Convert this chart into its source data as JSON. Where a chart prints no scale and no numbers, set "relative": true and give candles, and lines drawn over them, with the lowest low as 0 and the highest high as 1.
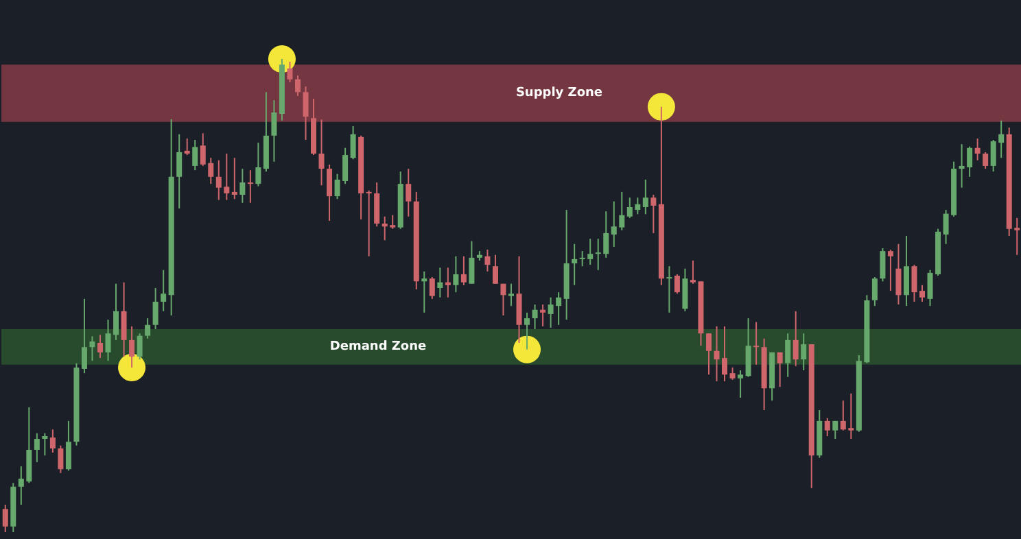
{
  "chart_data": {
    "type": "candlestick",
    "relative": true,
    "tick_labels": false,
    "categories": [
      null,
      null,
      null,
      null,
      null,
      null,
      null,
      null,
      null,
      null,
      null,
      null,
      null,
      null,
      null,
      null,
      null,
      null,
      null,
      null,
      null,
      null,
      null,
      null,
      null,
      null,
      null,
      null,
      null,
      null,
      null,
      null,
      null,
      null,
      null,
      null,
      null,
      null,
      null,
      null,
      null,
      null,
      null,
      null,
      null,
      null,
      null,
      null,
      null,
      null,
      null,
      null,
      null,
      null,
      null,
      null,
      null,
      null,
      null,
      null,
      null,
      null,
      null,
      null,
      null,
      null,
      null,
      null,
      null,
      null,
      null,
      null,
      null,
      null,
      null,
      null,
      null,
      null,
      null,
      null,
      null,
      null,
      null,
      null,
      null,
      null,
      null,
      null,
      null,
      null,
      null,
      null,
      null,
      null,
      null,
      null,
      null,
      null,
      null,
      null,
      null,
      null,
      null,
      null,
      null,
      null,
      null,
      null,
      null,
      null,
      null,
      null,
      null,
      null,
      null,
      null,
      null,
      null,
      null,
      null,
      null,
      null,
      null,
      null,
      null,
      null,
      null,
      null,
      null
    ],
    "ohlc": [
      [
        0.049,
        0.058,
        0,
        0.012
      ],
      [
        0.012,
        0.104,
        0,
        0.096
      ],
      [
        0.096,
        0.139,
        0.058,
        0.113
      ],
      [
        0.107,
        0.264,
        0.104,
        0.174
      ],
      [
        0.174,
        0.209,
        0.148,
        0.197
      ],
      [
        0.197,
        0.209,
        0.162,
        0.203
      ],
      [
        0.2,
        0.217,
        0.168,
        0.177
      ],
      [
        0.177,
        0.183,
        0.125,
        0.133
      ],
      [
        0.133,
        0.235,
        0.13,
        0.191
      ],
      [
        0.191,
        0.357,
        0.183,
        0.348
      ],
      [
        0.345,
        0.493,
        0.336,
        0.391
      ],
      [
        0.391,
        0.414,
        0.362,
        0.403
      ],
      [
        0.4,
        0.417,
        0.368,
        0.38
      ],
      [
        0.38,
        0.449,
        0.362,
        0.42
      ],
      [
        0.417,
        0.525,
        0.406,
        0.467
      ],
      [
        0.467,
        0.528,
        0.371,
        0.406
      ],
      [
        0.406,
        0.435,
        0.348,
        0.371
      ],
      [
        0.371,
        0.42,
        0.365,
        0.415
      ],
      [
        0.415,
        0.452,
        0.409,
        0.438
      ],
      [
        0.438,
        0.516,
        0.429,
        0.487
      ],
      [
        0.487,
        0.554,
        0.467,
        0.504
      ],
      [
        0.501,
        0.873,
        0.458,
        0.751
      ],
      [
        0.751,
        0.841,
        0.684,
        0.803
      ],
      [
        0.806,
        0.832,
        0.797,
        0.8
      ],
      [
        0.774,
        0.829,
        0.765,
        0.814
      ],
      [
        0.817,
        0.843,
        0.774,
        0.777
      ],
      [
        0.78,
        0.791,
        0.736,
        0.751
      ],
      [
        0.751,
        0.786,
        0.702,
        0.728
      ],
      [
        0.73,
        0.8,
        0.702,
        0.716
      ],
      [
        0.719,
        0.791,
        0.704,
        0.713
      ],
      [
        0.713,
        0.768,
        0.696,
        0.739
      ],
      [
        0.739,
        0.765,
        0.696,
        0.736
      ],
      [
        0.736,
        0.823,
        0.731,
        0.771
      ],
      [
        0.768,
        0.93,
        0.762,
        0.838
      ],
      [
        0.838,
        0.913,
        0.783,
        0.887
      ],
      [
        0.884,
        1,
        0.87,
        0.988
      ],
      [
        0.98,
        0.994,
        0.951,
        0.957
      ],
      [
        0.957,
        0.965,
        0.922,
        0.93
      ],
      [
        0.93,
        0.942,
        0.829,
        0.878
      ],
      [
        0.875,
        0.916,
        0.797,
        0.8
      ],
      [
        0.8,
        0.872,
        0.733,
        0.768
      ],
      [
        0.768,
        0.777,
        0.658,
        0.71
      ],
      [
        0.71,
        0.757,
        0.704,
        0.745
      ],
      [
        0.742,
        0.812,
        0.736,
        0.797
      ],
      [
        0.791,
        0.858,
        0.788,
        0.841
      ],
      [
        0.835,
        0.838,
        0.661,
        0.716
      ],
      [
        0.719,
        0.722,
        0.583,
        0.716
      ],
      [
        0.716,
        0.739,
        0.646,
        0.652
      ],
      [
        0.652,
        0.667,
        0.617,
        0.646
      ],
      [
        0.649,
        0.67,
        0.641,
        0.644
      ],
      [
        0.644,
        0.762,
        0.641,
        0.736
      ],
      [
        0.736,
        0.768,
        0.667,
        0.699
      ],
      [
        0.699,
        0.719,
        0.513,
        0.53
      ],
      [
        0.53,
        0.551,
        0.464,
        0.536
      ],
      [
        0.536,
        0.539,
        0.493,
        0.499
      ],
      [
        0.516,
        0.559,
        0.496,
        0.528
      ],
      [
        0.528,
        0.559,
        0.496,
        0.522
      ],
      [
        0.522,
        0.583,
        0.507,
        0.545
      ],
      [
        0.545,
        0.583,
        0.522,
        0.528
      ],
      [
        0.525,
        0.615,
        0.525,
        0.58
      ],
      [
        0.58,
        0.594,
        0.574,
        0.586
      ],
      [
        0.583,
        0.597,
        0.551,
        0.565
      ],
      [
        0.562,
        0.586,
        0.525,
        0.525
      ],
      [
        0.525,
        0.525,
        0.458,
        0.501
      ],
      [
        0.499,
        0.525,
        0.478,
        0.504
      ],
      [
        0.504,
        0.583,
        0.4,
        0.438
      ],
      [
        0.438,
        0.464,
        0.386,
        0.452
      ],
      [
        0.452,
        0.481,
        0.429,
        0.47
      ],
      [
        0.47,
        0.481,
        0.435,
        0.464
      ],
      [
        0.461,
        0.496,
        0.432,
        0.481
      ],
      [
        0.478,
        0.507,
        0.438,
        0.496
      ],
      [
        0.493,
        0.681,
        0.449,
        0.568
      ],
      [
        0.568,
        0.609,
        0.522,
        0.577
      ],
      [
        0.577,
        0.594,
        0.562,
        0.58
      ],
      [
        0.577,
        0.62,
        0.565,
        0.588
      ],
      [
        0.588,
        0.62,
        0.554,
        0.591
      ],
      [
        0.588,
        0.678,
        0.58,
        0.632
      ],
      [
        0.629,
        0.699,
        0.603,
        0.646
      ],
      [
        0.644,
        0.719,
        0.638,
        0.67
      ],
      [
        0.667,
        0.707,
        0.664,
        0.687
      ],
      [
        0.681,
        0.707,
        0.672,
        0.693
      ],
      [
        0.687,
        0.745,
        0.672,
        0.707
      ],
      [
        0.707,
        0.713,
        0.632,
        0.69
      ],
      [
        0.693,
        0.899,
        0.522,
        0.536
      ],
      [
        0.536,
        0.562,
        0.464,
        0.539
      ],
      [
        0.542,
        0.545,
        0.504,
        0.507
      ],
      [
        0.472,
        0.557,
        0.467,
        0.536
      ],
      [
        0.533,
        0.574,
        0.525,
        0.528
      ],
      [
        0.53,
        0.53,
        0.394,
        0.42
      ],
      [
        0.42,
        0.42,
        0.333,
        0.383
      ],
      [
        0.383,
        0.435,
        0.319,
        0.365
      ],
      [
        0.368,
        0.435,
        0.319,
        0.333
      ],
      [
        0.336,
        0.348,
        0.322,
        0.325
      ],
      [
        0.325,
        0.342,
        0.284,
        0.333
      ],
      [
        0.33,
        0.452,
        0.328,
        0.394
      ],
      [
        0.394,
        0.444,
        0.354,
        0.391
      ],
      [
        0.391,
        0.409,
        0.258,
        0.304
      ],
      [
        0.304,
        0.38,
        0.278,
        0.38
      ],
      [
        0.38,
        0.38,
        0.307,
        0.357
      ],
      [
        0.357,
        0.42,
        0.328,
        0.406
      ],
      [
        0.406,
        0.467,
        0.351,
        0.365
      ],
      [
        0.365,
        0.42,
        0.342,
        0.397
      ],
      [
        0.397,
        0.397,
        0.093,
        0.162
      ],
      [
        0.162,
        0.258,
        0.157,
        0.235
      ],
      [
        0.235,
        0.241,
        0.203,
        0.215
      ],
      [
        0.215,
        0.235,
        0.197,
        0.235
      ],
      [
        0.235,
        0.278,
        0.215,
        0.217
      ],
      [
        0.22,
        0.293,
        0.197,
        0.215
      ],
      [
        0.215,
        0.374,
        0.212,
        0.362
      ],
      [
        0.359,
        0.501,
        0.357,
        0.49
      ],
      [
        0.49,
        0.539,
        0.478,
        0.536
      ],
      [
        0.536,
        0.6,
        0.53,
        0.594
      ],
      [
        0.594,
        0.597,
        0.51,
        0.583
      ],
      [
        0.557,
        0.609,
        0.481,
        0.501
      ],
      [
        0.501,
        0.626,
        0.478,
        0.562
      ],
      [
        0.562,
        0.565,
        0.487,
        0.507
      ],
      [
        0.51,
        0.522,
        0.487,
        0.496
      ],
      [
        0.493,
        0.554,
        0.478,
        0.548
      ],
      [
        0.545,
        0.641,
        0.542,
        0.635
      ],
      [
        0.629,
        0.681,
        0.609,
        0.673
      ],
      [
        0.67,
        0.783,
        0.667,
        0.768
      ],
      [
        0.768,
        0.82,
        0.728,
        0.774
      ],
      [
        0.771,
        0.815,
        0.751,
        0.812
      ],
      [
        0.812,
        0.832,
        0.786,
        0.8
      ],
      [
        0.8,
        0.803,
        0.768,
        0.774
      ],
      [
        0.774,
        0.829,
        0.762,
        0.826
      ],
      [
        0.823,
        0.87,
        0.791,
        0.841
      ],
      [
        0.841,
        0.855,
        0.626,
        0.641
      ],
      [
        0.643,
        0.664,
        0.586,
        0.638
      ]
    ],
    "bands": [
      {
        "axis": "y",
        "from": 0.867,
        "to": 0.988,
        "label": "Supply Zone",
        "color": "#7e3a44"
      },
      {
        "axis": "y",
        "from": 0.354,
        "to": 0.429,
        "label": "Demand Zone",
        "color": "#2a4f2e"
      }
    ]
  }
}
